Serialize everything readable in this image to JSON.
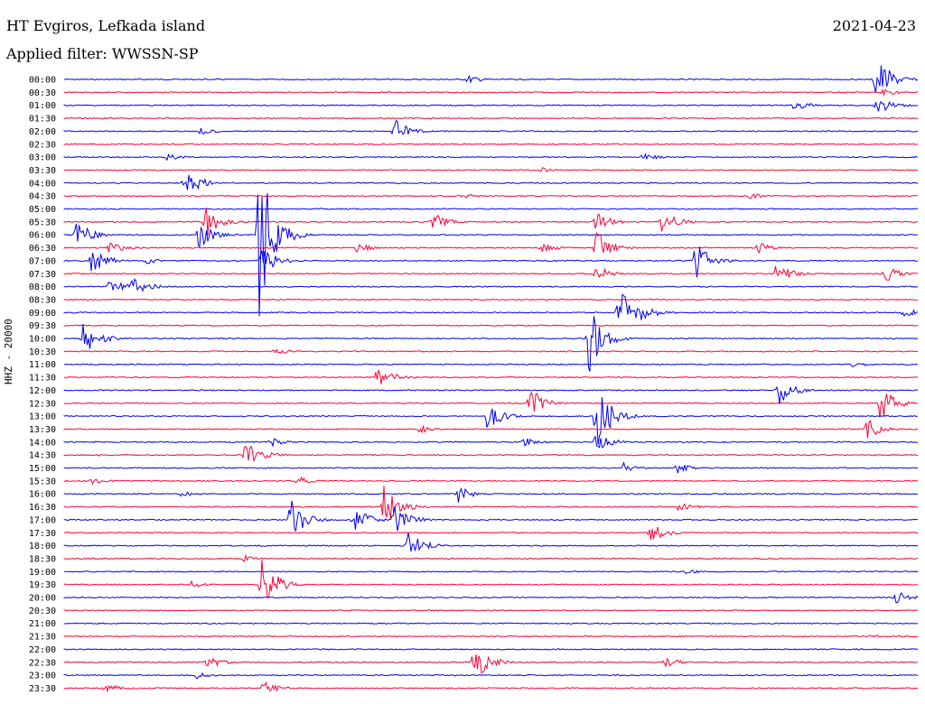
{
  "header": {
    "station": "HT Evgiros, Lefkada island",
    "date": "2021-04-23",
    "filter": "Applied filter: WWSSN-SP"
  },
  "axis": {
    "ylabel": "HHZ - 20000"
  },
  "colors": {
    "blue": "#0000ee",
    "red": "#ff0033"
  },
  "rows": [
    {
      "time": "00:00",
      "color": "blue",
      "events": [
        {
          "x": 518,
          "amp": 5
        },
        {
          "x": 970,
          "amp": 28
        }
      ]
    },
    {
      "time": "00:30",
      "color": "red",
      "events": [
        {
          "x": 975,
          "amp": 6
        }
      ]
    },
    {
      "time": "01:00",
      "color": "blue",
      "events": [
        {
          "x": 880,
          "amp": 7
        },
        {
          "x": 970,
          "amp": 12
        }
      ]
    },
    {
      "time": "01:30",
      "color": "red",
      "events": []
    },
    {
      "time": "02:00",
      "color": "blue",
      "events": [
        {
          "x": 222,
          "amp": 4
        },
        {
          "x": 437,
          "amp": 15
        }
      ]
    },
    {
      "time": "02:30",
      "color": "red",
      "events": []
    },
    {
      "time": "03:00",
      "color": "blue",
      "events": [
        {
          "x": 185,
          "amp": 4
        },
        {
          "x": 712,
          "amp": 5
        }
      ]
    },
    {
      "time": "03:30",
      "color": "red",
      "events": [
        {
          "x": 600,
          "amp": 3
        }
      ]
    },
    {
      "time": "04:00",
      "color": "blue",
      "events": [
        {
          "x": 205,
          "amp": 20
        }
      ]
    },
    {
      "time": "04:30",
      "color": "red",
      "events": [
        {
          "x": 510,
          "amp": 4
        },
        {
          "x": 830,
          "amp": 4
        }
      ]
    },
    {
      "time": "05:00",
      "color": "blue",
      "events": []
    },
    {
      "time": "05:30",
      "color": "red",
      "events": [
        {
          "x": 228,
          "amp": 18
        },
        {
          "x": 478,
          "amp": 12
        },
        {
          "x": 660,
          "amp": 12
        },
        {
          "x": 733,
          "amp": 14
        }
      ]
    },
    {
      "time": "06:00",
      "color": "blue",
      "events": [
        {
          "x": 85,
          "amp": 18
        },
        {
          "x": 220,
          "amp": 16
        },
        {
          "x": 287,
          "amp": 90
        }
      ]
    },
    {
      "time": "06:30",
      "color": "red",
      "events": [
        {
          "x": 122,
          "amp": 10
        },
        {
          "x": 395,
          "amp": 6
        },
        {
          "x": 600,
          "amp": 6
        },
        {
          "x": 660,
          "amp": 20
        },
        {
          "x": 840,
          "amp": 6
        }
      ]
    },
    {
      "time": "07:00",
      "color": "blue",
      "events": [
        {
          "x": 102,
          "amp": 16
        },
        {
          "x": 160,
          "amp": 5
        },
        {
          "x": 290,
          "amp": 20
        },
        {
          "x": 770,
          "amp": 22
        }
      ]
    },
    {
      "time": "07:30",
      "color": "red",
      "events": [
        {
          "x": 660,
          "amp": 10
        },
        {
          "x": 860,
          "amp": 16
        },
        {
          "x": 980,
          "amp": 10
        }
      ]
    },
    {
      "time": "08:00",
      "color": "blue",
      "events": [
        {
          "x": 122,
          "amp": 10
        },
        {
          "x": 147,
          "amp": 14
        }
      ]
    },
    {
      "time": "08:30",
      "color": "red",
      "events": []
    },
    {
      "time": "09:00",
      "color": "blue",
      "events": [
        {
          "x": 685,
          "amp": 30
        },
        {
          "x": 710,
          "amp": 12
        },
        {
          "x": 1000,
          "amp": 6
        }
      ]
    },
    {
      "time": "09:30",
      "color": "red",
      "events": []
    },
    {
      "time": "10:00",
      "color": "blue",
      "events": [
        {
          "x": 92,
          "amp": 26
        },
        {
          "x": 652,
          "amp": 40
        }
      ]
    },
    {
      "time": "10:30",
      "color": "red",
      "events": [
        {
          "x": 305,
          "amp": 5
        }
      ]
    },
    {
      "time": "11:00",
      "color": "blue",
      "events": [
        {
          "x": 945,
          "amp": 4
        }
      ]
    },
    {
      "time": "11:30",
      "color": "red",
      "events": [
        {
          "x": 418,
          "amp": 14
        }
      ]
    },
    {
      "time": "12:00",
      "color": "blue",
      "events": [
        {
          "x": 862,
          "amp": 18
        }
      ]
    },
    {
      "time": "12:30",
      "color": "red",
      "events": [
        {
          "x": 587,
          "amp": 20
        },
        {
          "x": 975,
          "amp": 22
        }
      ]
    },
    {
      "time": "13:00",
      "color": "blue",
      "events": [
        {
          "x": 540,
          "amp": 18
        },
        {
          "x": 660,
          "amp": 40
        }
      ]
    },
    {
      "time": "13:30",
      "color": "red",
      "events": [
        {
          "x": 465,
          "amp": 5
        },
        {
          "x": 960,
          "amp": 12
        }
      ]
    },
    {
      "time": "14:00",
      "color": "blue",
      "events": [
        {
          "x": 300,
          "amp": 5
        },
        {
          "x": 580,
          "amp": 6
        },
        {
          "x": 660,
          "amp": 12
        }
      ]
    },
    {
      "time": "14:30",
      "color": "red",
      "events": [
        {
          "x": 272,
          "amp": 20
        }
      ]
    },
    {
      "time": "15:00",
      "color": "blue",
      "events": [
        {
          "x": 690,
          "amp": 6
        },
        {
          "x": 750,
          "amp": 6
        }
      ]
    },
    {
      "time": "15:30",
      "color": "red",
      "events": [
        {
          "x": 102,
          "amp": 4
        },
        {
          "x": 330,
          "amp": 5
        }
      ]
    },
    {
      "time": "16:00",
      "color": "blue",
      "events": [
        {
          "x": 200,
          "amp": 4
        },
        {
          "x": 507,
          "amp": 10
        }
      ]
    },
    {
      "time": "16:30",
      "color": "red",
      "events": [
        {
          "x": 425,
          "amp": 26
        },
        {
          "x": 752,
          "amp": 6
        }
      ]
    },
    {
      "time": "17:00",
      "color": "blue",
      "events": [
        {
          "x": 322,
          "amp": 24
        },
        {
          "x": 392,
          "amp": 16
        },
        {
          "x": 437,
          "amp": 20
        }
      ]
    },
    {
      "time": "17:30",
      "color": "red",
      "events": [
        {
          "x": 720,
          "amp": 14
        }
      ]
    },
    {
      "time": "18:00",
      "color": "blue",
      "events": [
        {
          "x": 452,
          "amp": 18
        }
      ]
    },
    {
      "time": "18:30",
      "color": "red",
      "events": [
        {
          "x": 270,
          "amp": 4
        }
      ]
    },
    {
      "time": "19:00",
      "color": "blue",
      "events": [
        {
          "x": 760,
          "amp": 3
        }
      ]
    },
    {
      "time": "19:30",
      "color": "red",
      "events": [
        {
          "x": 290,
          "amp": 32
        },
        {
          "x": 212,
          "amp": 4
        }
      ]
    },
    {
      "time": "20:00",
      "color": "blue",
      "events": [
        {
          "x": 992,
          "amp": 8
        }
      ]
    },
    {
      "time": "20:30",
      "color": "red",
      "events": []
    },
    {
      "time": "21:00",
      "color": "blue",
      "events": []
    },
    {
      "time": "21:30",
      "color": "red",
      "events": [
        {
          "x": 965,
          "amp": 3
        }
      ]
    },
    {
      "time": "22:00",
      "color": "blue",
      "events": []
    },
    {
      "time": "22:30",
      "color": "red",
      "events": [
        {
          "x": 230,
          "amp": 8
        },
        {
          "x": 525,
          "amp": 26
        },
        {
          "x": 737,
          "amp": 6
        }
      ]
    },
    {
      "time": "23:00",
      "color": "blue",
      "events": [
        {
          "x": 218,
          "amp": 4
        }
      ]
    },
    {
      "time": "23:30",
      "color": "red",
      "events": [
        {
          "x": 117,
          "amp": 6
        },
        {
          "x": 292,
          "amp": 8
        }
      ]
    }
  ]
}
